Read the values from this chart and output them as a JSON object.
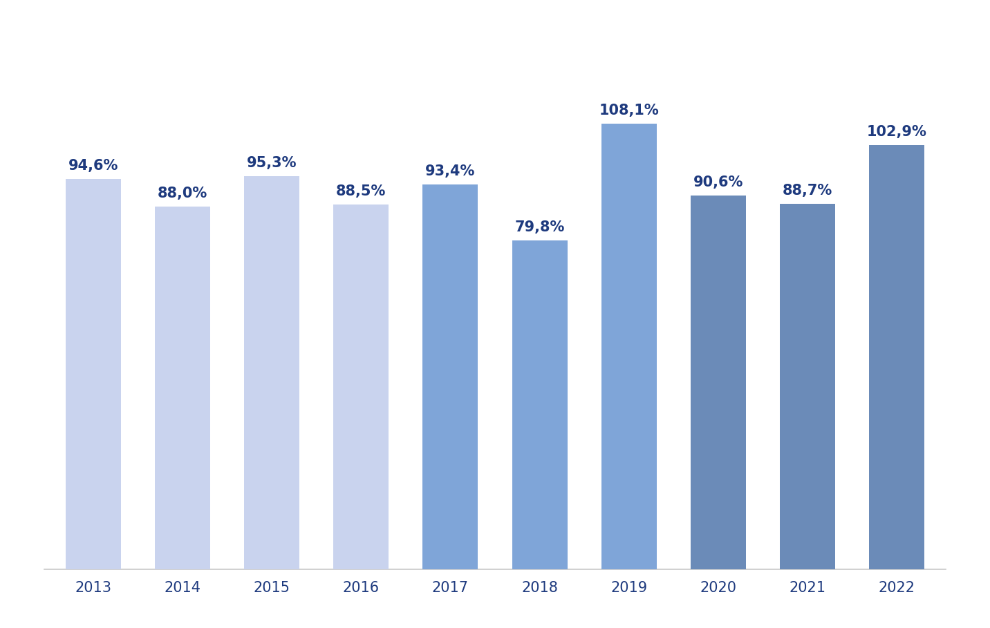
{
  "years": [
    "2013",
    "2014",
    "2015",
    "2016",
    "2017",
    "2018",
    "2019",
    "2020",
    "2021",
    "2022"
  ],
  "values": [
    94.6,
    88.0,
    95.3,
    88.5,
    93.4,
    79.8,
    108.1,
    90.6,
    88.7,
    102.9
  ],
  "labels": [
    "94,6%",
    "88,0%",
    "95,3%",
    "88,5%",
    "93,4%",
    "79,8%",
    "108,1%",
    "90,6%",
    "88,7%",
    "102,9%"
  ],
  "bar_colors": [
    "#c9d3ee",
    "#c9d3ee",
    "#c9d3ee",
    "#c9d3ee",
    "#7fa5d8",
    "#7fa5d8",
    "#7fa5d8",
    "#6b8bb8",
    "#6b8bb8",
    "#6b8bb8"
  ],
  "text_color": "#1e3a7e",
  "axis_color": "#c8c8c8",
  "tick_color": "#1e3a7e",
  "background_color": "#ffffff",
  "card_edge_color": "#dddddd",
  "ylim": [
    0,
    130
  ],
  "label_fontsize": 15,
  "tick_fontsize": 15,
  "bar_width": 0.62
}
